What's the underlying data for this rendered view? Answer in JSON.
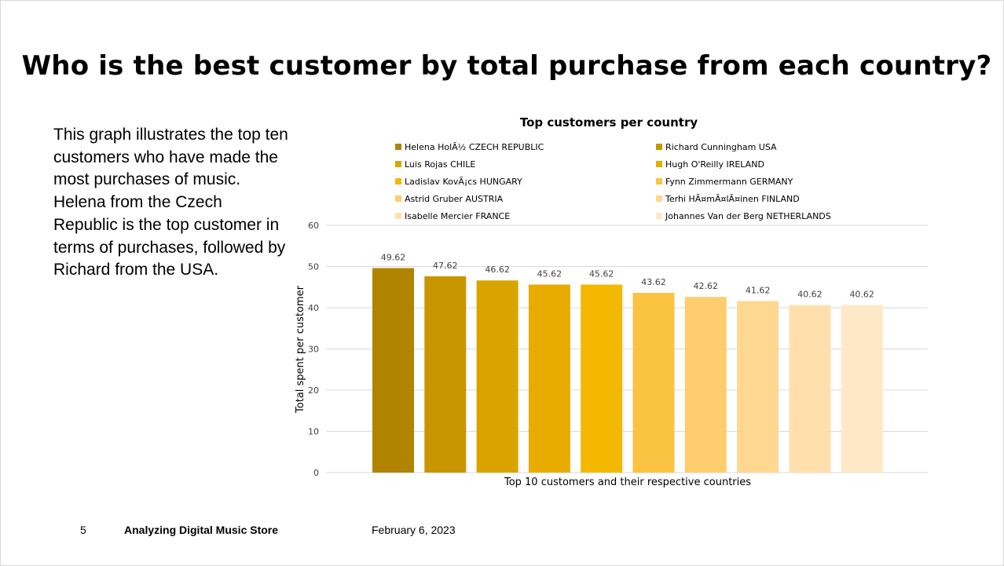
{
  "slide": {
    "title": "Who is the best customer by total purchase from each country?",
    "description": "This graph illustrates the top ten customers who have made the most purchases of music. Helena from the Czech Republic is the top customer in terms of purchases, followed by Richard from the USA.",
    "footer": {
      "page_number": "5",
      "presentation_name": "Analyzing Digital Music Store",
      "date": "February 6, 2023"
    }
  },
  "chart_data": {
    "type": "bar",
    "title": "Top customers per country",
    "xlabel": "Top 10 customers and their respective countries",
    "ylabel": "Total spent per customer",
    "ylim": [
      0,
      60
    ],
    "yticks": [
      0,
      10,
      20,
      30,
      40,
      50,
      60
    ],
    "grid": true,
    "legend_position": "top",
    "series": [
      {
        "name": "Helena HolÃ½ CZECH REPUBLIC",
        "value": 49.62,
        "label": "49.62",
        "color": "#b08300"
      },
      {
        "name": "Richard Cunningham USA",
        "value": 47.62,
        "label": "47.62",
        "color": "#c89600"
      },
      {
        "name": "Luis Rojas CHILE",
        "value": 46.62,
        "label": "46.62",
        "color": "#d9a400"
      },
      {
        "name": "Hugh O'Reilly IRELAND",
        "value": 45.62,
        "label": "45.62",
        "color": "#e8ac00"
      },
      {
        "name": "Ladislav KovÃ¡cs HUNGARY",
        "value": 45.62,
        "label": "45.62",
        "color": "#f5b800"
      },
      {
        "name": "Fynn Zimmermann GERMANY",
        "value": 43.62,
        "label": "43.62",
        "color": "#fbc342"
      },
      {
        "name": "Astrid Gruber AUSTRIA",
        "value": 42.62,
        "label": "42.62",
        "color": "#fdcd6e"
      },
      {
        "name": "Terhi HÃ¤mÃ¤lÃ¤inen FINLAND",
        "value": 41.62,
        "label": "41.62",
        "color": "#fed791"
      },
      {
        "name": "Isabelle Mercier FRANCE",
        "value": 40.62,
        "label": "40.62",
        "color": "#ffe0ad"
      },
      {
        "name": "Johannes Van der Berg NETHERLANDS",
        "value": 40.62,
        "label": "40.62",
        "color": "#ffe8c6"
      }
    ]
  }
}
